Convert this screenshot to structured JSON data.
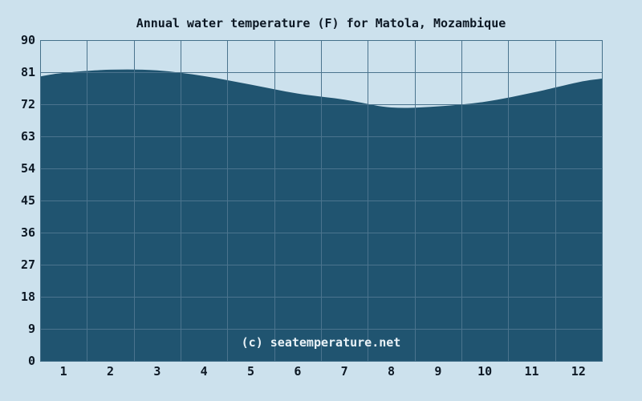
{
  "title": "Annual water temperature (F) for Matola, Mozambique",
  "watermark": "(c) seatemperature.net",
  "colors": {
    "background": "#cce1ed",
    "area_fill": "#205470",
    "gridline": "#4b748e",
    "plot_border": "#44708a",
    "text": "#0d1824",
    "watermark_text": "#e9f2f7"
  },
  "chart_data": {
    "type": "area",
    "title": "Annual water temperature (F) for Matola, Mozambique",
    "xlabel": "",
    "ylabel": "",
    "categories": [
      "1",
      "2",
      "3",
      "4",
      "5",
      "6",
      "7",
      "8",
      "9",
      "10",
      "11",
      "12"
    ],
    "values": [
      80.8,
      81.7,
      81.5,
      79.9,
      77.5,
      75.0,
      73.3,
      71.1,
      71.4,
      72.7,
      75.2,
      78.2
    ],
    "edge_value_left": 79.8,
    "edge_value_right": 79.2,
    "ylim": [
      0,
      90
    ],
    "yticks": [
      90,
      81,
      72,
      63,
      54,
      45,
      36,
      27,
      18,
      9,
      0
    ],
    "grid": true,
    "legend": "none",
    "series_name": "Water temperature (F)"
  }
}
